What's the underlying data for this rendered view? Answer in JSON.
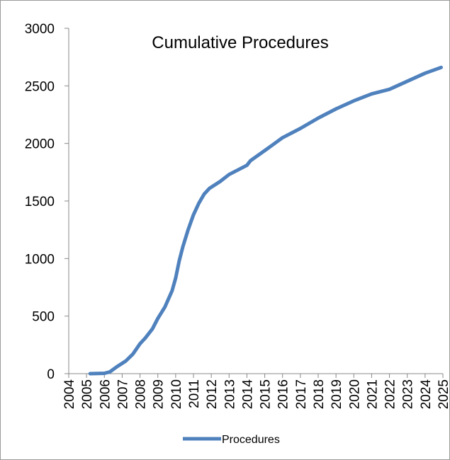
{
  "chart_data": {
    "type": "line",
    "title": "Cumulative Procedures",
    "x": [
      2005.2,
      2006.0,
      2006.3,
      2006.7,
      2007.2,
      2007.6,
      2008.0,
      2008.3,
      2008.7,
      2009.0,
      2009.4,
      2009.8,
      2010.0,
      2010.2,
      2010.4,
      2010.7,
      2011.0,
      2011.3,
      2011.6,
      2011.9,
      2012.5,
      2013.0,
      2013.5,
      2014.0,
      2014.2,
      2015.2,
      2016.0,
      2017.0,
      2018.0,
      2019.0,
      2020.0,
      2021.0,
      2022.0,
      2023.0,
      2024.0,
      2024.9
    ],
    "series": [
      {
        "name": "Procedures",
        "color": "#4f81bd",
        "values": [
          0,
          3,
          15,
          60,
          110,
          170,
          260,
          310,
          390,
          480,
          580,
          720,
          830,
          980,
          1100,
          1250,
          1380,
          1480,
          1560,
          1610,
          1670,
          1730,
          1770,
          1810,
          1850,
          1960,
          2050,
          2130,
          2220,
          2300,
          2370,
          2430,
          2470,
          2540,
          2610,
          2660
        ]
      }
    ],
    "xlim": [
      2004,
      2025
    ],
    "xticks": [
      2004,
      2005,
      2006,
      2007,
      2008,
      2009,
      2010,
      2011,
      2012,
      2013,
      2014,
      2015,
      2016,
      2017,
      2018,
      2019,
      2020,
      2021,
      2022,
      2023,
      2024,
      2025
    ],
    "ylim": [
      0,
      3000
    ],
    "yticks": [
      0,
      500,
      1000,
      1500,
      2000,
      2500,
      3000
    ],
    "legend": "bottom"
  }
}
